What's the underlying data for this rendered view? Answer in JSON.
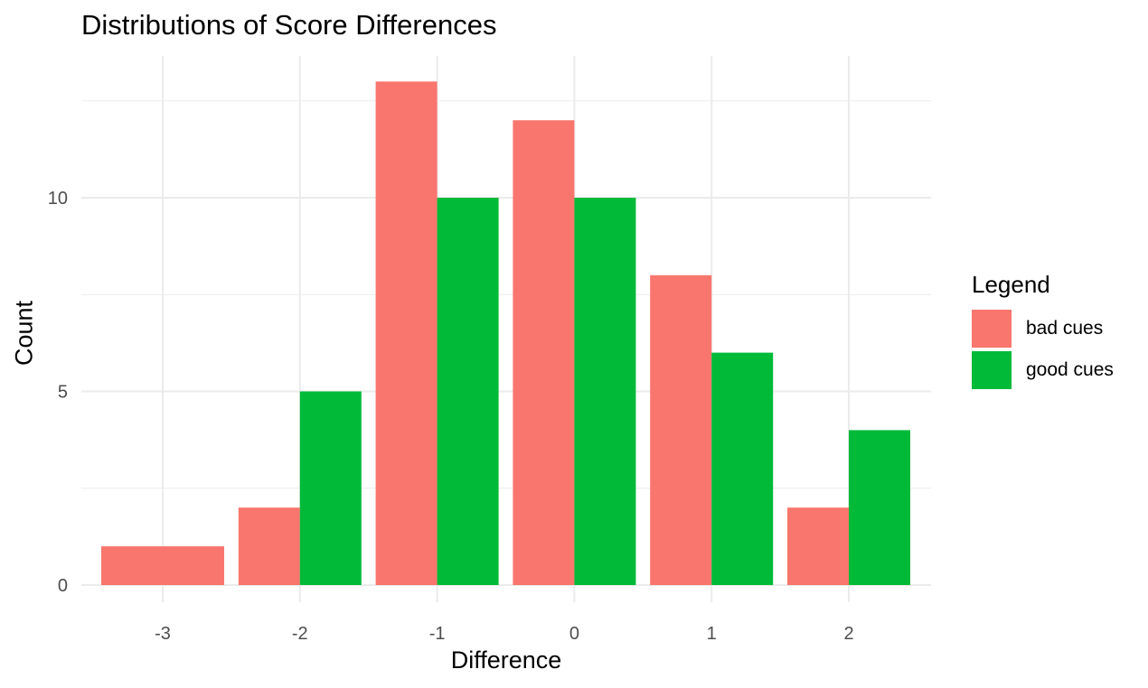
{
  "chart_data": {
    "type": "bar",
    "title": "Distributions of Score Differences",
    "xlabel": "Difference",
    "ylabel": "Count",
    "categories": [
      "-3",
      "-2",
      "-1",
      "0",
      "1",
      "2"
    ],
    "series": [
      {
        "name": "bad cues",
        "color": "#F8766D",
        "values": [
          1,
          2,
          13,
          12,
          8,
          2
        ]
      },
      {
        "name": "good cues",
        "color": "#00BA38",
        "values": [
          0,
          5,
          10,
          10,
          6,
          4
        ]
      }
    ],
    "yticks": [
      "0",
      "5",
      "10"
    ],
    "ylim": [
      0,
      13.5
    ],
    "grid": true,
    "legend": {
      "title": "Legend",
      "position": "right"
    }
  }
}
